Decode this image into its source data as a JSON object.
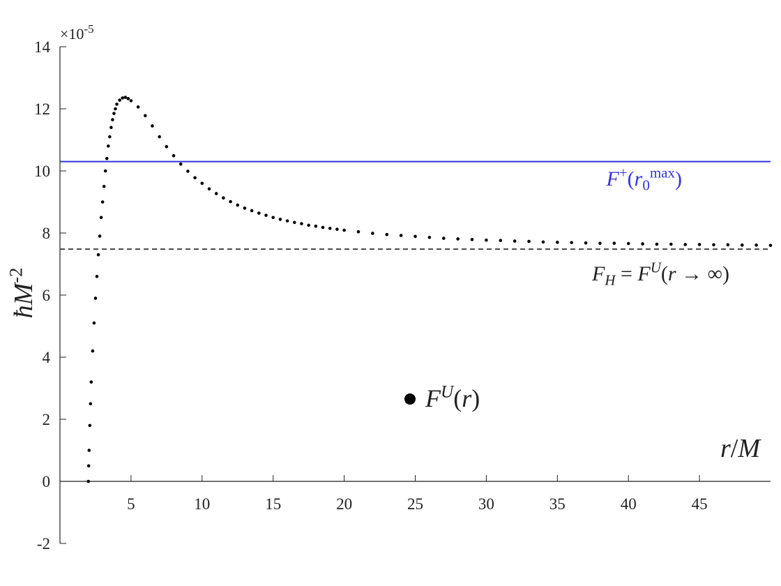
{
  "chart_data": {
    "type": "scatter",
    "y_multiplier": {
      "base": "×10",
      "exponent": "-5"
    },
    "y_label_parts": [
      {
        "text": "ħ",
        "italic": true
      },
      {
        "text": "M",
        "italic": true
      },
      {
        "text": "-2",
        "sup": true
      }
    ],
    "x_label_parts": [
      {
        "text": "r",
        "italic": true
      },
      {
        "text": "/"
      },
      {
        "text": "M",
        "italic": true
      }
    ],
    "xlim": [
      0,
      50
    ],
    "ylim": [
      -2,
      14
    ],
    "xticks": [
      5,
      10,
      15,
      20,
      25,
      30,
      35,
      40,
      45
    ],
    "yticks": [
      -2,
      0,
      2,
      4,
      6,
      8,
      10,
      12,
      14
    ],
    "x": [
      2.0,
      2.02,
      2.05,
      2.1,
      2.15,
      2.2,
      2.3,
      2.4,
      2.5,
      2.6,
      2.7,
      2.8,
      2.9,
      3.0,
      3.1,
      3.2,
      3.3,
      3.4,
      3.5,
      3.6,
      3.7,
      3.8,
      3.9,
      4.0,
      4.2,
      4.4,
      4.6,
      4.8,
      5.0,
      5.5,
      6.0,
      6.5,
      7.0,
      7.5,
      8.0,
      8.5,
      9.0,
      9.5,
      10,
      10.5,
      11,
      11.5,
      12,
      12.5,
      13,
      13.5,
      14,
      14.5,
      15,
      15.5,
      16,
      16.5,
      17,
      17.5,
      18,
      18.5,
      19,
      19.5,
      20,
      21,
      22,
      23,
      24,
      25,
      26,
      27,
      28,
      29,
      30,
      31,
      32,
      33,
      34,
      35,
      36,
      37,
      38,
      39,
      40,
      41,
      42,
      43,
      44,
      45,
      46,
      47,
      48,
      49,
      50
    ],
    "series": [
      {
        "name_parts": [
          {
            "text": "F",
            "italic": true
          },
          {
            "text": "U",
            "sup": true,
            "italic": true
          },
          {
            "text": "("
          },
          {
            "text": "r",
            "italic": true
          },
          {
            "text": ")"
          }
        ],
        "color": "#000000",
        "values": [
          0,
          0.5,
          1.0,
          1.8,
          2.5,
          3.2,
          4.2,
          5.1,
          5.9,
          6.6,
          7.3,
          7.9,
          8.5,
          9.0,
          9.5,
          10.0,
          10.4,
          10.8,
          11.1,
          11.4,
          11.65,
          11.85,
          12.0,
          12.15,
          12.28,
          12.35,
          12.37,
          12.33,
          12.26,
          12.06,
          11.78,
          11.45,
          11.1,
          10.78,
          10.49,
          10.22,
          9.99,
          9.78,
          9.6,
          9.42,
          9.27,
          9.13,
          9.01,
          8.9,
          8.8,
          8.72,
          8.64,
          8.57,
          8.5,
          8.44,
          8.39,
          8.34,
          8.3,
          8.25,
          8.22,
          8.18,
          8.15,
          8.12,
          8.09,
          8.04,
          7.99,
          7.95,
          7.92,
          7.89,
          7.86,
          7.83,
          7.81,
          7.79,
          7.77,
          7.76,
          7.74,
          7.73,
          7.71,
          7.7,
          7.69,
          7.68,
          7.67,
          7.67,
          7.66,
          7.65,
          7.64,
          7.64,
          7.63,
          7.63,
          7.62,
          7.62,
          7.61,
          7.61,
          7.6
        ]
      }
    ],
    "hlines": [
      {
        "y": 10.3,
        "color": "#3333dd",
        "style": "solid",
        "label_parts": [
          {
            "text": "F",
            "italic": true
          },
          {
            "text": "+",
            "sup": true
          },
          {
            "text": "("
          },
          {
            "text": "r",
            "italic": true
          },
          {
            "text": "0",
            "sub": true
          },
          {
            "text": "max",
            "sup": true
          },
          {
            "text": ")"
          }
        ]
      },
      {
        "y": 7.48,
        "color": "#444444",
        "style": "dashed",
        "label_parts": [
          {
            "text": "F",
            "italic": true
          },
          {
            "text": "H",
            "sub": true,
            "italic": true
          },
          {
            "text": " = "
          },
          {
            "text": "F",
            "italic": true
          },
          {
            "text": "U",
            "sup": true,
            "italic": true
          },
          {
            "text": "("
          },
          {
            "text": "r",
            "italic": true
          },
          {
            "text": " → ∞)"
          }
        ]
      }
    ]
  }
}
